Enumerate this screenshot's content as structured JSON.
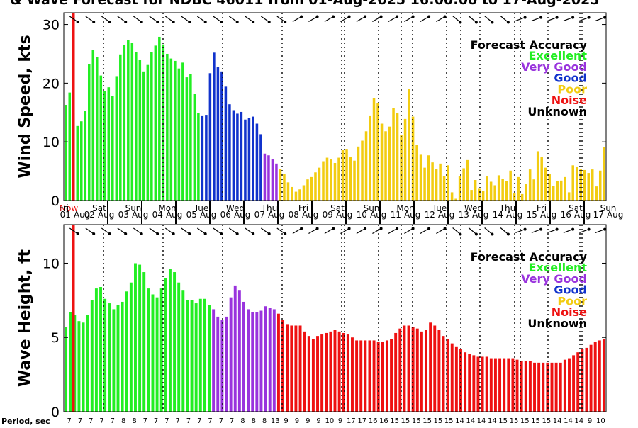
{
  "title": "& Wave Forecast for NDBC 46011 from 01-Aug-2025 16:00:00 to 17-Aug-2025",
  "period_label": "Period, sec",
  "now_label": "Now",
  "colors": {
    "Excellent": "#22ee22",
    "Very Good": "#9933dd",
    "Good": "#1133cc",
    "Poor": "#f2cc11",
    "Noise": "#ee1111",
    "Unknown": "#000000"
  },
  "chart_data": [
    {
      "type": "bar",
      "ylabel": "Wind Speed, kts",
      "ylim": [
        0,
        32
      ],
      "yticks": [
        0,
        10,
        20,
        30
      ],
      "legend_title": "Forecast Accuracy",
      "legend": [
        "Excellent",
        "Very Good",
        "Good",
        "Poor",
        "Noise",
        "Unknown"
      ],
      "legend_position": "top-right",
      "day_labels": [
        {
          "weekday": "Fri",
          "date": "01-Aug"
        },
        {
          "weekday": "Sat",
          "date": "02-Aug"
        },
        {
          "weekday": "Sun",
          "date": "03-Aug"
        },
        {
          "weekday": "Mon",
          "date": "04-Aug"
        },
        {
          "weekday": "Tue",
          "date": "05-Aug"
        },
        {
          "weekday": "Wed",
          "date": "06-Aug"
        },
        {
          "weekday": "Thu",
          "date": "07-Aug"
        },
        {
          "weekday": "Fri",
          "date": "08-Aug"
        },
        {
          "weekday": "Sat",
          "date": "09-Aug"
        },
        {
          "weekday": "Sun",
          "date": "10-Aug"
        },
        {
          "weekday": "Mon",
          "date": "11-Aug"
        },
        {
          "weekday": "Tue",
          "date": "12-Aug"
        },
        {
          "weekday": "Wed",
          "date": "13-Aug"
        },
        {
          "weekday": "Thu",
          "date": "14-Aug"
        },
        {
          "weekday": "Fri",
          "date": "15-Aug"
        },
        {
          "weekday": "Sat",
          "date": "16-Aug"
        },
        {
          "weekday": "Sun",
          "date": "17-Aug"
        }
      ],
      "values": [
        16.3,
        18.4,
        15.0,
        12.7,
        13.5,
        15.3,
        23.2,
        25.6,
        24.4,
        21.3,
        18.7,
        19.3,
        17.8,
        21.2,
        24.9,
        26.5,
        27.4,
        26.9,
        25.3,
        24.0,
        22.0,
        23.1,
        25.3,
        26.4,
        27.9,
        26.6,
        25.0,
        24.2,
        23.8,
        22.5,
        23.5,
        21.0,
        21.6,
        18.2,
        14.9,
        14.5,
        14.6,
        21.7,
        25.2,
        22.7,
        22.0,
        19.4,
        16.4,
        15.4,
        14.8,
        15.1,
        13.8,
        14.1,
        14.3,
        13.1,
        11.3,
        8.0,
        7.7,
        7.0,
        6.3,
        5.4,
        4.5,
        3.1,
        2.3,
        1.5,
        1.9,
        2.6,
        3.6,
        4.0,
        4.8,
        5.6,
        6.7,
        7.3,
        7.0,
        6.4,
        7.3,
        8.6,
        8.8,
        7.4,
        6.8,
        9.2,
        10.2,
        11.8,
        14.5,
        17.4,
        16.6,
        13.1,
        11.8,
        12.6,
        15.8,
        14.9,
        11.1,
        13.9,
        19.0,
        14.3,
        9.5,
        7.8,
        5.6,
        7.7,
        6.5,
        5.4,
        6.3,
        4.2,
        6.0,
        1.4,
        0.3,
        4.2,
        5.5,
        6.9,
        1.8,
        3.5,
        2.0,
        1.6,
        4.1,
        3.2,
        2.6,
        4.3,
        3.7,
        3.3,
        5.1,
        1.2,
        4.0,
        1.1,
        2.8,
        5.3,
        3.6,
        8.4,
        7.4,
        5.6,
        4.5,
        2.5,
        3.3,
        3.4,
        4.0,
        1.4,
        6.0,
        5.8,
        5.3,
        5.2,
        4.7,
        5.3,
        2.4,
        5.1,
        9.1
      ],
      "accuracy": [
        "Excellent",
        "Excellent",
        "Excellent",
        "Excellent",
        "Excellent",
        "Excellent",
        "Excellent",
        "Excellent",
        "Excellent",
        "Excellent",
        "Excellent",
        "Excellent",
        "Excellent",
        "Excellent",
        "Excellent",
        "Excellent",
        "Excellent",
        "Excellent",
        "Excellent",
        "Excellent",
        "Excellent",
        "Excellent",
        "Excellent",
        "Excellent",
        "Excellent",
        "Excellent",
        "Excellent",
        "Excellent",
        "Excellent",
        "Excellent",
        "Excellent",
        "Excellent",
        "Excellent",
        "Excellent",
        "Excellent",
        "Good",
        "Good",
        "Good",
        "Good",
        "Good",
        "Good",
        "Good",
        "Good",
        "Good",
        "Good",
        "Good",
        "Good",
        "Good",
        "Good",
        "Good",
        "Good",
        "Very Good",
        "Very Good",
        "Very Good",
        "Very Good",
        "Poor",
        "Poor",
        "Poor",
        "Poor",
        "Poor",
        "Poor",
        "Poor",
        "Poor",
        "Poor",
        "Poor",
        "Poor",
        "Poor",
        "Poor",
        "Poor",
        "Poor",
        "Poor",
        "Poor",
        "Poor",
        "Poor",
        "Poor",
        "Poor",
        "Poor",
        "Poor",
        "Poor",
        "Poor",
        "Poor",
        "Poor",
        "Poor",
        "Poor",
        "Poor",
        "Poor",
        "Poor",
        "Poor",
        "Poor",
        "Poor",
        "Poor",
        "Poor",
        "Poor",
        "Poor",
        "Poor",
        "Poor",
        "Poor",
        "Poor",
        "Poor",
        "Poor",
        "Poor",
        "Poor",
        "Poor",
        "Poor",
        "Poor",
        "Poor",
        "Poor",
        "Poor",
        "Poor",
        "Poor",
        "Poor",
        "Poor",
        "Poor",
        "Poor",
        "Poor",
        "Poor",
        "Poor",
        "Poor",
        "Poor",
        "Poor",
        "Poor",
        "Poor",
        "Poor",
        "Poor",
        "Poor",
        "Poor",
        "Poor",
        "Poor",
        "Poor",
        "Poor",
        "Poor",
        "Poor",
        "Poor",
        "Poor",
        "Poor",
        "Poor",
        "Poor",
        "Poor",
        "Poor"
      ]
    },
    {
      "type": "bar",
      "ylabel": "Wave Height, ft",
      "ylim": [
        0,
        12.6
      ],
      "yticks": [
        0,
        5,
        10
      ],
      "legend_title": "Forecast Accuracy",
      "legend": [
        "Excellent",
        "Very Good",
        "Good",
        "Poor",
        "Noise",
        "Unknown"
      ],
      "legend_position": "top-right",
      "period_sec": [
        "7",
        "7",
        "7",
        "7",
        "7",
        "8",
        "8",
        "7",
        "7",
        "7",
        "7",
        "7",
        "7",
        "7",
        "7",
        "7",
        "8",
        "8",
        "8",
        "13",
        "9",
        "9",
        "9",
        "9",
        "10",
        "9",
        "17",
        "17",
        "16",
        "16",
        "15",
        "15",
        "15",
        "15",
        "15",
        "15",
        "14",
        "14",
        "14",
        "14",
        "15",
        "15",
        "15",
        "15",
        "15",
        "14",
        "14",
        "14",
        "9",
        "10"
      ],
      "values": [
        5.7,
        6.7,
        6.5,
        6.1,
        6.0,
        6.5,
        7.5,
        8.3,
        8.4,
        7.6,
        7.3,
        6.9,
        7.2,
        7.4,
        8.1,
        8.7,
        10.0,
        9.9,
        9.4,
        8.3,
        7.9,
        7.7,
        8.3,
        9.0,
        9.6,
        9.4,
        8.7,
        8.2,
        7.5,
        7.5,
        7.3,
        7.6,
        7.6,
        7.2,
        6.9,
        6.4,
        6.2,
        6.4,
        7.7,
        8.5,
        8.2,
        7.4,
        6.9,
        6.7,
        6.7,
        6.8,
        7.1,
        7.0,
        6.9,
        6.6,
        6.2,
        5.9,
        5.8,
        5.8,
        5.8,
        5.4,
        5.1,
        4.9,
        5.1,
        5.2,
        5.3,
        5.4,
        5.5,
        5.4,
        5.3,
        5.2,
        5.0,
        4.8,
        4.8,
        4.8,
        4.8,
        4.8,
        4.7,
        4.7,
        4.8,
        4.9,
        5.3,
        5.6,
        5.8,
        5.8,
        5.7,
        5.6,
        5.4,
        5.5,
        6.0,
        5.8,
        5.5,
        5.1,
        4.9,
        4.6,
        4.4,
        4.2,
        4.0,
        3.9,
        3.8,
        3.7,
        3.7,
        3.7,
        3.6,
        3.6,
        3.6,
        3.6,
        3.6,
        3.6,
        3.5,
        3.4,
        3.4,
        3.4,
        3.3,
        3.3,
        3.3,
        3.3,
        3.3,
        3.3,
        3.3,
        3.5,
        3.6,
        3.8,
        4.0,
        4.2,
        4.3,
        4.5,
        4.7,
        4.8,
        4.9
      ],
      "accuracy": [
        "Excellent",
        "Excellent",
        "Excellent",
        "Excellent",
        "Excellent",
        "Excellent",
        "Excellent",
        "Excellent",
        "Excellent",
        "Excellent",
        "Excellent",
        "Excellent",
        "Excellent",
        "Excellent",
        "Excellent",
        "Excellent",
        "Excellent",
        "Excellent",
        "Excellent",
        "Excellent",
        "Excellent",
        "Excellent",
        "Excellent",
        "Excellent",
        "Excellent",
        "Excellent",
        "Excellent",
        "Excellent",
        "Excellent",
        "Excellent",
        "Excellent",
        "Excellent",
        "Excellent",
        "Excellent",
        "Very Good",
        "Very Good",
        "Very Good",
        "Very Good",
        "Very Good",
        "Very Good",
        "Very Good",
        "Very Good",
        "Very Good",
        "Very Good",
        "Very Good",
        "Very Good",
        "Very Good",
        "Very Good",
        "Very Good",
        "Noise",
        "Noise",
        "Noise",
        "Noise",
        "Noise",
        "Noise",
        "Noise",
        "Noise",
        "Noise",
        "Noise",
        "Noise",
        "Noise",
        "Noise",
        "Noise",
        "Noise",
        "Noise",
        "Noise",
        "Noise",
        "Noise",
        "Noise",
        "Noise",
        "Noise",
        "Noise",
        "Noise",
        "Noise",
        "Noise",
        "Noise",
        "Noise",
        "Noise",
        "Noise",
        "Noise",
        "Noise",
        "Noise",
        "Noise",
        "Noise",
        "Noise",
        "Noise",
        "Noise",
        "Noise",
        "Noise",
        "Noise",
        "Noise",
        "Noise",
        "Noise",
        "Noise",
        "Noise",
        "Noise",
        "Noise",
        "Noise",
        "Noise",
        "Noise",
        "Noise",
        "Noise",
        "Noise",
        "Noise",
        "Noise",
        "Noise",
        "Noise",
        "Noise",
        "Noise",
        "Noise",
        "Noise",
        "Noise",
        "Noise",
        "Noise",
        "Noise",
        "Noise",
        "Noise",
        "Noise",
        "Noise",
        "Noise",
        "Noise",
        "Noise",
        "Noise",
        "Noise",
        "Noise",
        "Noise"
      ]
    }
  ]
}
